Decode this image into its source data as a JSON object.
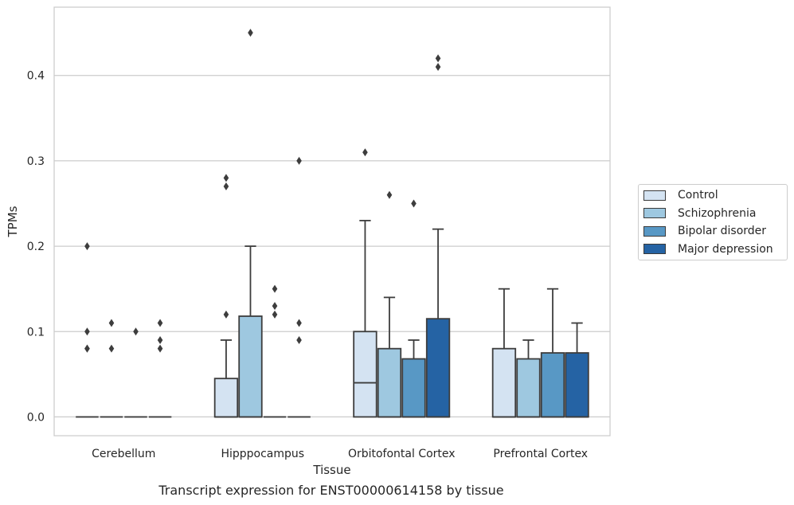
{
  "chart_data": {
    "type": "box",
    "xlabel": "Tissue",
    "ylabel": "TPMs",
    "caption": "Transcript expression for ENST00000614158 by tissue",
    "categories": [
      "Cerebellum",
      "Hipppocampus",
      "Orbitofontal Cortex",
      "Prefrontal Cortex"
    ],
    "ylim": [
      -0.022,
      0.48
    ],
    "yticks": [
      0.0,
      0.1,
      0.2,
      0.3,
      0.4
    ],
    "ytick_labels": [
      "0.0",
      "0.1",
      "0.2",
      "0.3",
      "0.4"
    ],
    "grid": "horizontal",
    "legend_position": "right",
    "series": [
      {
        "name": "Control",
        "color": "#d4e3f2",
        "boxes": [
          {
            "q1": 0.0,
            "median": 0.0,
            "q3": 0.0,
            "whislo": 0.0,
            "whishi": 0.0,
            "fliers": [
              0.2,
              0.1,
              0.08,
              0.08
            ]
          },
          {
            "q1": 0.0,
            "median": 0.0,
            "q3": 0.045,
            "whislo": 0.0,
            "whishi": 0.09,
            "fliers": [
              0.28,
              0.27,
              0.12
            ]
          },
          {
            "q1": 0.0,
            "median": 0.04,
            "q3": 0.1,
            "whislo": 0.0,
            "whishi": 0.23,
            "fliers": [
              0.31
            ]
          },
          {
            "q1": 0.0,
            "median": 0.0,
            "q3": 0.08,
            "whislo": 0.0,
            "whishi": 0.15,
            "fliers": []
          }
        ]
      },
      {
        "name": "Schizophrenia",
        "color": "#9ec8e0",
        "boxes": [
          {
            "q1": 0.0,
            "median": 0.0,
            "q3": 0.0,
            "whislo": 0.0,
            "whishi": 0.0,
            "fliers": [
              0.11,
              0.08
            ]
          },
          {
            "q1": 0.0,
            "median": 0.0,
            "q3": 0.118,
            "whislo": 0.0,
            "whishi": 0.2,
            "fliers": [
              0.45
            ]
          },
          {
            "q1": 0.0,
            "median": 0.0,
            "q3": 0.08,
            "whislo": 0.0,
            "whishi": 0.14,
            "fliers": [
              0.26
            ]
          },
          {
            "q1": 0.0,
            "median": 0.0,
            "q3": 0.068,
            "whislo": 0.0,
            "whishi": 0.09,
            "fliers": []
          }
        ]
      },
      {
        "name": "Bipolar disorder",
        "color": "#5898c5",
        "boxes": [
          {
            "q1": 0.0,
            "median": 0.0,
            "q3": 0.0,
            "whislo": 0.0,
            "whishi": 0.0,
            "fliers": [
              0.1
            ]
          },
          {
            "q1": 0.0,
            "median": 0.0,
            "q3": 0.0,
            "whislo": 0.0,
            "whishi": 0.0,
            "fliers": [
              0.15,
              0.13,
              0.12
            ]
          },
          {
            "q1": 0.0,
            "median": 0.0,
            "q3": 0.068,
            "whislo": 0.0,
            "whishi": 0.09,
            "fliers": [
              0.25
            ]
          },
          {
            "q1": 0.0,
            "median": 0.0,
            "q3": 0.075,
            "whislo": 0.0,
            "whishi": 0.15,
            "fliers": []
          }
        ]
      },
      {
        "name": "Major depression",
        "color": "#2563a4",
        "boxes": [
          {
            "q1": 0.0,
            "median": 0.0,
            "q3": 0.0,
            "whislo": 0.0,
            "whishi": 0.0,
            "fliers": [
              0.11,
              0.09,
              0.08
            ]
          },
          {
            "q1": 0.0,
            "median": 0.0,
            "q3": 0.0,
            "whislo": 0.0,
            "whishi": 0.0,
            "fliers": [
              0.3,
              0.11,
              0.09
            ]
          },
          {
            "q1": 0.0,
            "median": 0.0,
            "q3": 0.115,
            "whislo": 0.0,
            "whishi": 0.22,
            "fliers": [
              0.42,
              0.41
            ]
          },
          {
            "q1": 0.0,
            "median": 0.0,
            "q3": 0.075,
            "whislo": 0.0,
            "whishi": 0.11,
            "fliers": []
          }
        ]
      }
    ]
  }
}
